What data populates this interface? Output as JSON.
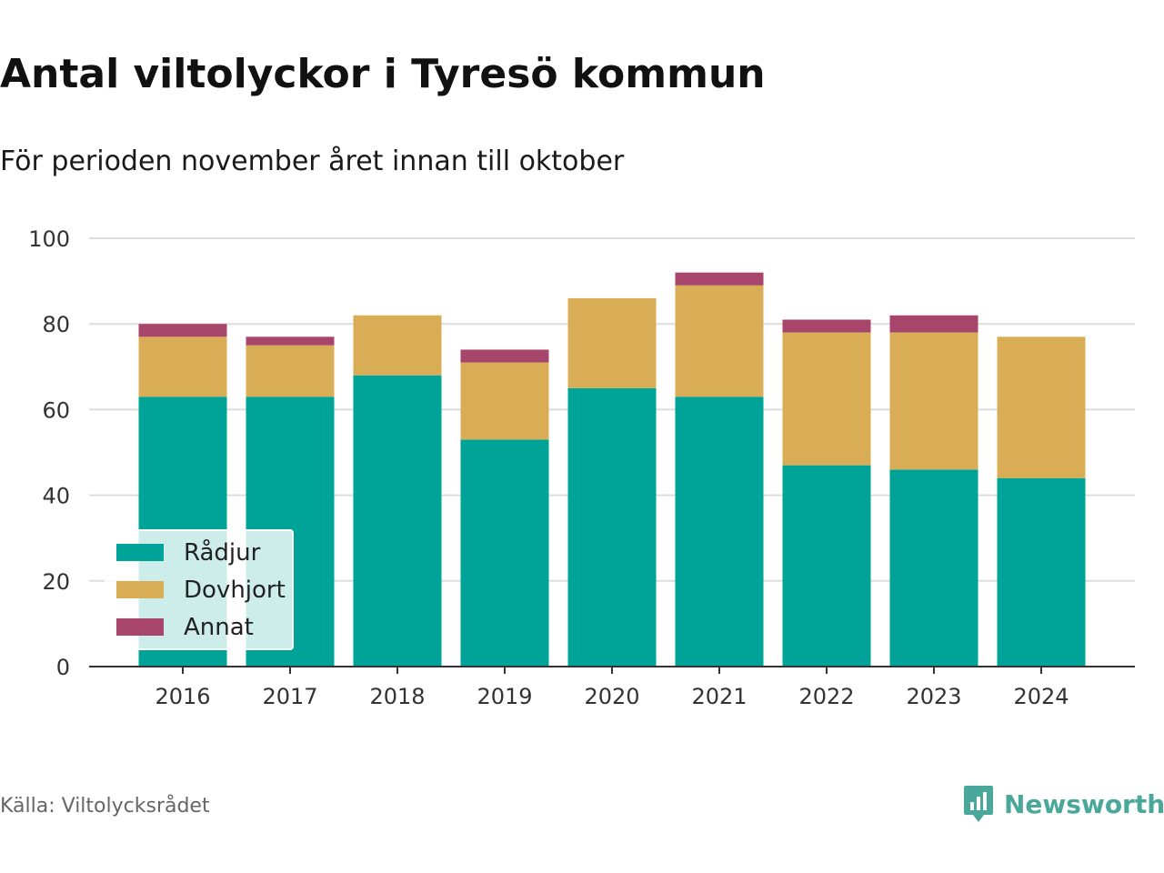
{
  "header": {
    "title": "Antal viltolyckor i Tyresö kommun",
    "subtitle": "För perioden november året innan till oktober"
  },
  "footer": {
    "source": "Källa: Viltolycksrådet",
    "brand": "Newsworthy"
  },
  "colors": {
    "radjur": "#00a398",
    "dovhjort": "#d9ad56",
    "annat": "#a7466a",
    "grid": "#dddddd",
    "axis": "#333333",
    "brand": "#4aa89a"
  },
  "chart_data": {
    "type": "bar",
    "stacked": true,
    "categories": [
      "2016",
      "2017",
      "2018",
      "2019",
      "2020",
      "2021",
      "2022",
      "2023",
      "2024"
    ],
    "series": [
      {
        "name": "Rådjur",
        "color": "#00a398",
        "values": [
          63,
          63,
          68,
          53,
          65,
          63,
          47,
          46,
          44
        ]
      },
      {
        "name": "Dovhjort",
        "color": "#d9ad56",
        "values": [
          14,
          12,
          14,
          18,
          21,
          26,
          31,
          32,
          33
        ]
      },
      {
        "name": "Annat",
        "color": "#a7466a",
        "values": [
          3,
          2,
          0,
          3,
          0,
          3,
          3,
          4,
          0
        ]
      }
    ],
    "ylim": [
      0,
      100
    ],
    "yticks": [
      "0",
      "20",
      "40",
      "60",
      "80",
      "100"
    ],
    "ytick_values": [
      0,
      20,
      40,
      60,
      80,
      100
    ],
    "grid": true,
    "legend_position": "bottom-left"
  }
}
